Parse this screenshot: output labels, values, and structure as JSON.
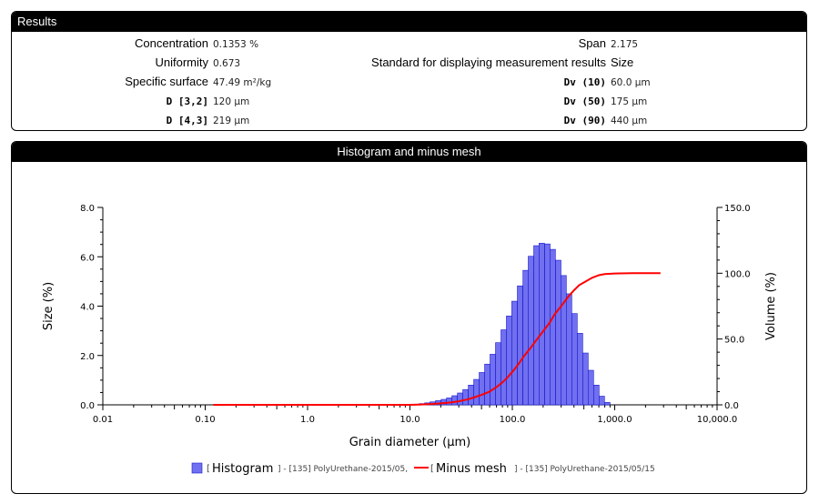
{
  "results": {
    "title": "Results",
    "left": [
      {
        "label": "Concentration",
        "value": "0.1353 %",
        "small": false
      },
      {
        "label": "Uniformity",
        "value": "0.673",
        "small": false
      },
      {
        "label": "Specific surface",
        "value": "47.49 m²/kg",
        "small": false
      },
      {
        "label": "D [3,2]",
        "value": "120 µm",
        "small": true
      },
      {
        "label": "D [4,3]",
        "value": "219 µm",
        "small": true
      }
    ],
    "right": [
      {
        "label": "Span",
        "value": "2.175",
        "small": false
      },
      {
        "label": "Standard for displaying measurement results",
        "value": "Size",
        "small": false
      },
      {
        "label": "Dv (10)",
        "value": "60.0 µm",
        "small": true
      },
      {
        "label": "Dv (50)",
        "value": "175 µm",
        "small": true
      },
      {
        "label": "Dv (90)",
        "value": "440 µm",
        "small": true
      }
    ]
  },
  "histogram_panel": {
    "title": "Histogram and minus mesh"
  },
  "chart_data": {
    "type": "bar",
    "title": "Histogram and minus mesh",
    "xlabel": "Grain diameter (μm)",
    "ylabel": "Size (%)",
    "y2label": "Volume (%)",
    "xscale": "log",
    "xlim": [
      0.01,
      10000
    ],
    "ylim": [
      0,
      8
    ],
    "y2lim": [
      0,
      150
    ],
    "x_ticks": [
      "0.01",
      "0.10",
      "1.0",
      "10.0",
      "100.0",
      "1,000.0",
      "10,000.0"
    ],
    "y_ticks": [
      "0.0",
      "2.0",
      "4.0",
      "6.0",
      "8.0"
    ],
    "y2_ticks": [
      "0.0",
      "50.0",
      "100.0",
      "150.0"
    ],
    "grid": false,
    "legend_position": "bottom",
    "series": [
      {
        "name": "Histogram",
        "legend_text": "[135] PolyUrethane-2015/05,",
        "color": "#7070f0",
        "x": [
          11.6,
          13.1,
          14.8,
          16.7,
          18.9,
          21.4,
          24.2,
          27.3,
          30.9,
          34.9,
          39.5,
          44.6,
          50.4,
          57.0,
          64.4,
          72.8,
          82.3,
          93.0,
          105,
          119,
          135,
          152,
          172,
          194,
          220,
          248,
          281,
          317,
          358,
          405,
          458,
          518,
          585,
          662,
          748,
          846
        ],
        "values": [
          0.02,
          0.05,
          0.08,
          0.12,
          0.17,
          0.22,
          0.28,
          0.37,
          0.48,
          0.62,
          0.8,
          1.03,
          1.31,
          1.65,
          2.05,
          2.52,
          3.04,
          3.6,
          4.2,
          4.82,
          5.45,
          6.02,
          6.45,
          6.55,
          6.52,
          6.3,
          5.86,
          5.24,
          4.5,
          3.7,
          2.9,
          2.1,
          1.4,
          0.8,
          0.35,
          0.1
        ]
      },
      {
        "name": "Minus mesh",
        "legend_text": "[135] PolyUrethane-2015/05/15",
        "color": "#ff0000",
        "axis": "y2",
        "x": [
          0.12,
          10,
          13,
          16,
          20,
          25,
          30,
          36,
          42,
          50,
          60,
          70,
          80,
          90,
          100,
          115,
          130,
          150,
          175,
          200,
          230,
          260,
          300,
          350,
          400,
          450,
          500,
          600,
          700,
          800,
          1000,
          1500,
          2800
        ],
        "values": [
          0,
          0,
          0.3,
          0.6,
          1.1,
          1.8,
          2.7,
          4.0,
          5.5,
          7.5,
          10,
          13.5,
          17,
          21,
          25,
          31,
          37,
          43,
          50,
          56,
          62,
          69,
          75,
          82,
          87,
          91,
          93,
          96.5,
          98.5,
          99.3,
          99.8,
          100,
          100
        ]
      }
    ]
  }
}
